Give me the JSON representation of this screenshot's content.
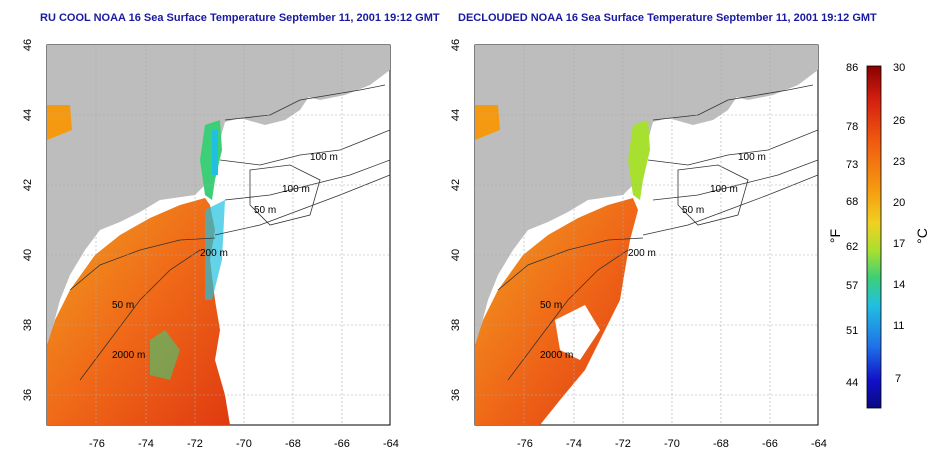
{
  "panels": [
    {
      "id": "left",
      "title": "RU COOL NOAA 16 Sea Surface Temperature September 11, 2001 19:12 GMT",
      "x_ticks": [
        "-76",
        "-74",
        "-72",
        "-70",
        "-68",
        "-66",
        "-64"
      ],
      "y_ticks": [
        "46",
        "44",
        "42",
        "40",
        "38",
        "36"
      ],
      "contour_labels": [
        "100 m",
        "100 m",
        "50 m",
        "200 m",
        "50 m",
        "2000 m"
      ]
    },
    {
      "id": "right",
      "title": "DECLOUDED NOAA 16 Sea Surface Temperature September 11, 2001 19:12 GMT",
      "x_ticks": [
        "-76",
        "-74",
        "-72",
        "-70",
        "-68",
        "-66",
        "-64"
      ],
      "y_ticks": [
        "46",
        "44",
        "42",
        "40",
        "38",
        "36"
      ],
      "contour_labels": [
        "100 m",
        "100 m",
        "50 m",
        "200 m",
        "50 m",
        "2000 m"
      ]
    }
  ],
  "colorbar": {
    "fahrenheit_ticks": [
      "86",
      "78",
      "73",
      "68",
      "62",
      "57",
      "51",
      "44"
    ],
    "celsius_ticks": [
      "30",
      "26",
      "23",
      "20",
      "17",
      "14",
      "11",
      "7"
    ],
    "fahrenheit_label": "°F",
    "celsius_label": "°C",
    "colors": [
      "#8b0000",
      "#d42010",
      "#f05a10",
      "#f59a10",
      "#f0d020",
      "#a8e030",
      "#3ccf78",
      "#20c0e0",
      "#2070e8",
      "#1010c8",
      "#0a0a80"
    ]
  }
}
